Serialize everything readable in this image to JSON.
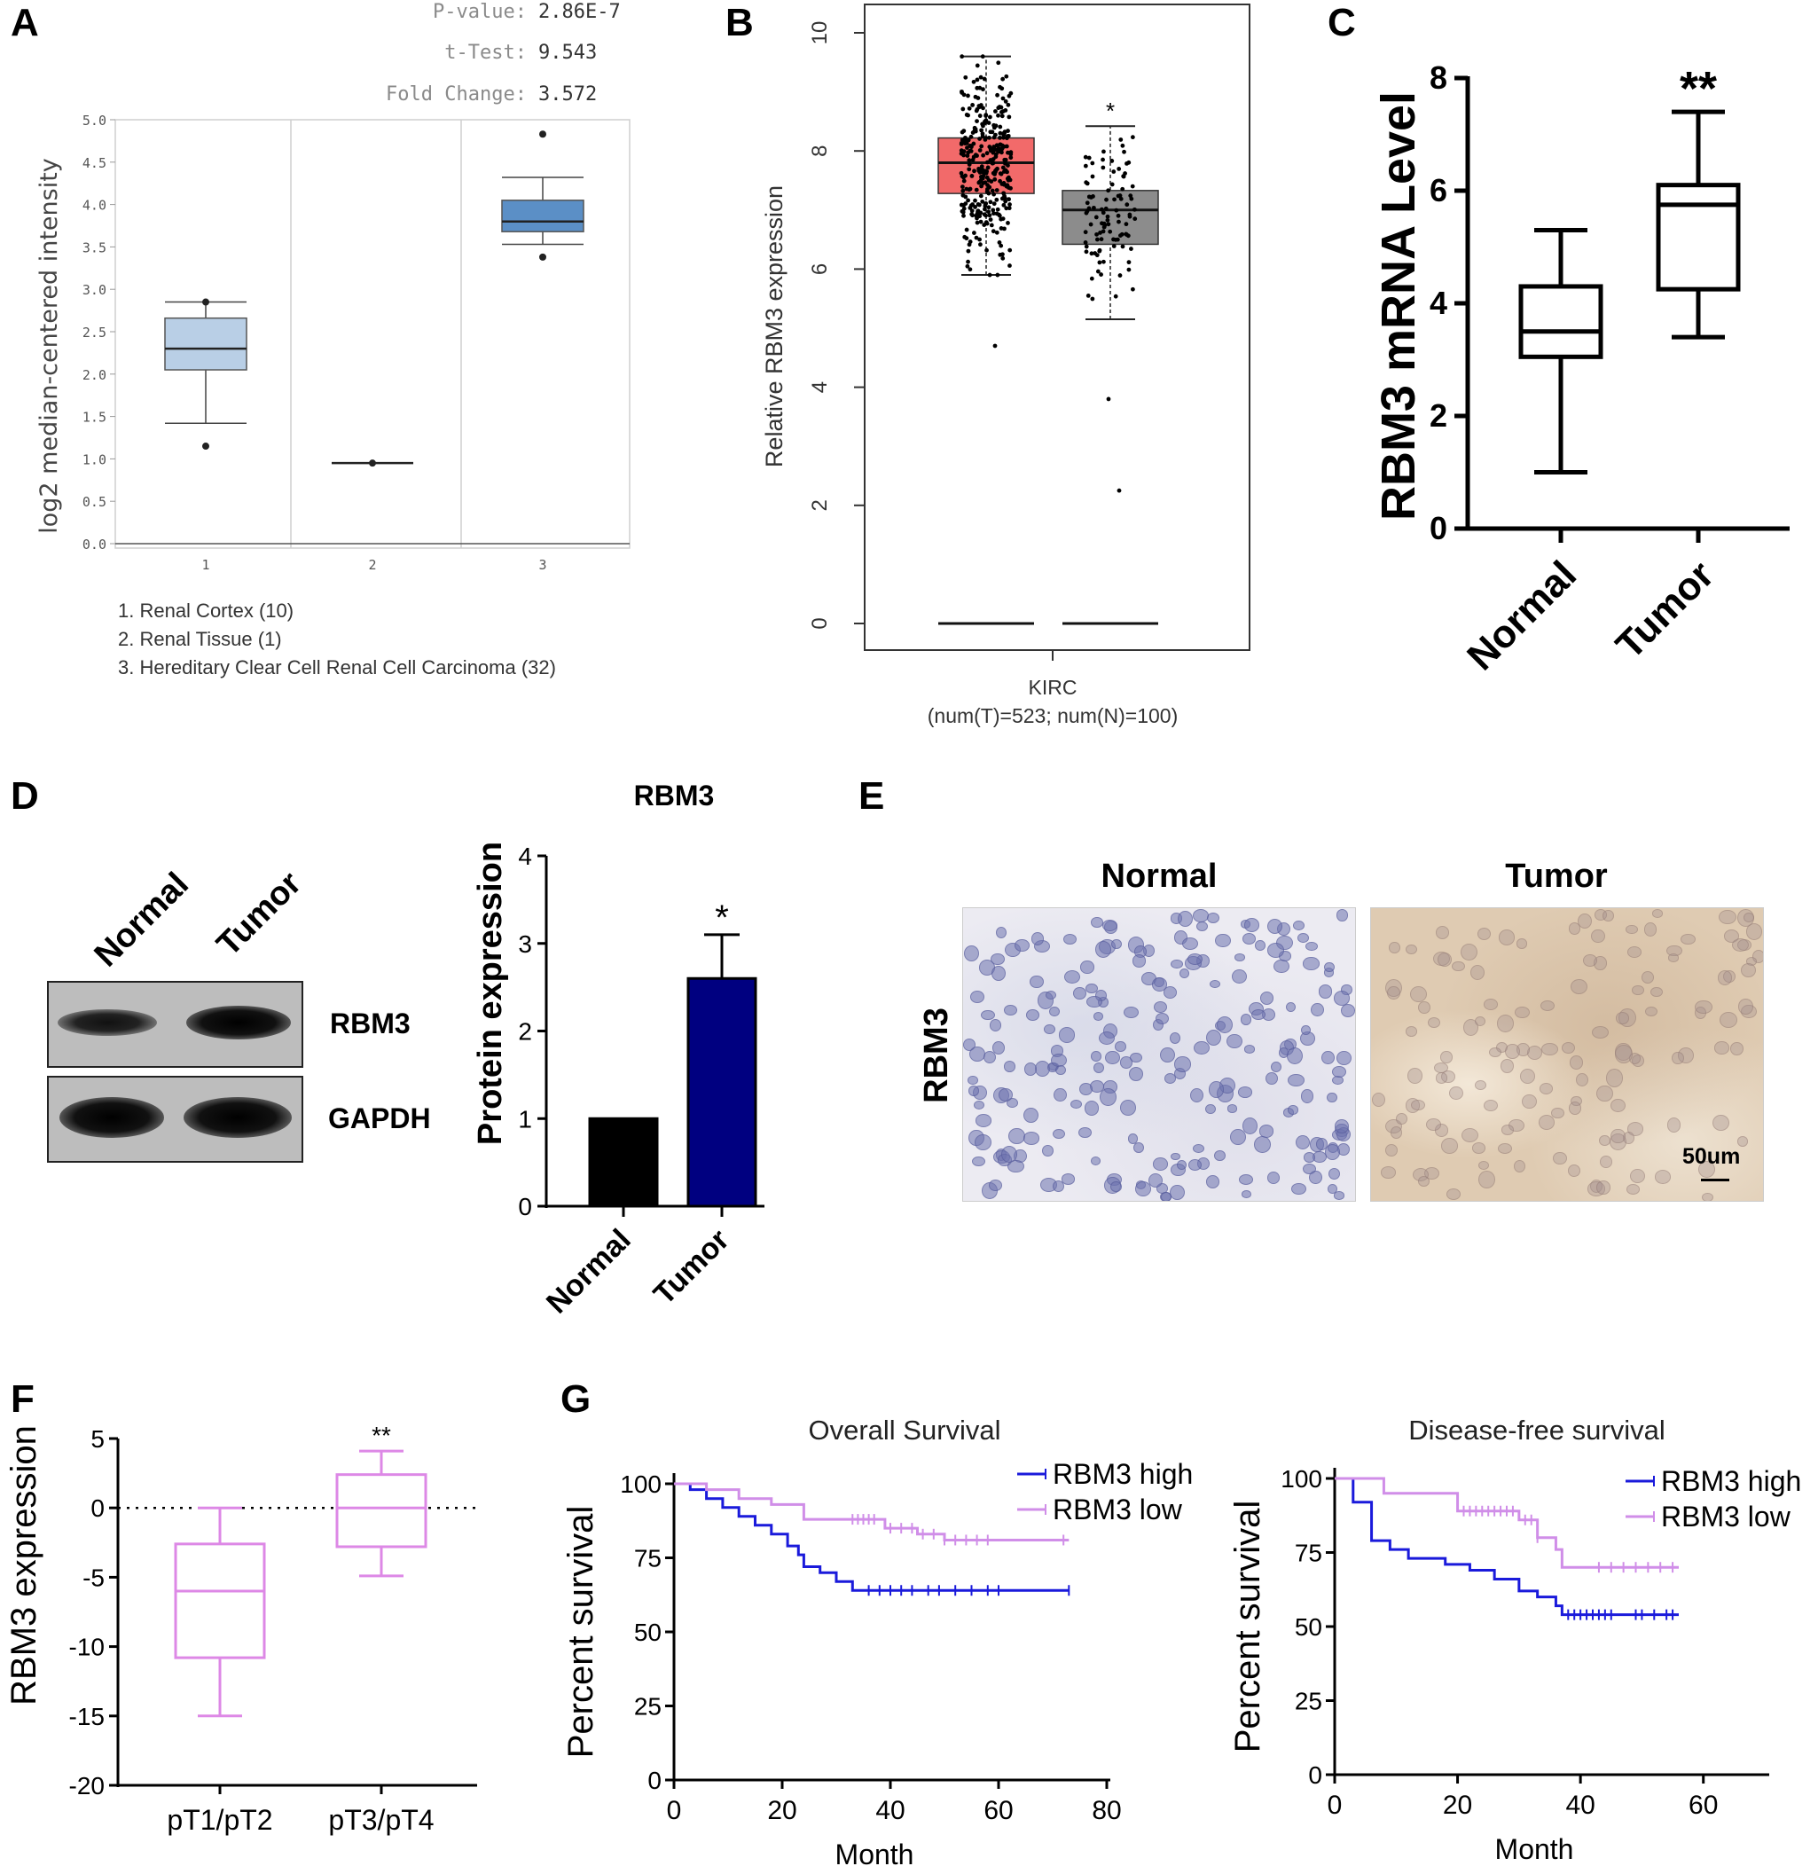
{
  "panels": {
    "A": {
      "letter": "A",
      "stats": [
        {
          "label": "P-value:",
          "value": "2.86E-7"
        },
        {
          "label": "t-Test:",
          "value": "9.543"
        },
        {
          "label": "Fold Change:",
          "value": "3.572"
        }
      ],
      "legend_items": [
        "1. Renal Cortex (10)",
        "2. Renal Tissue (1)",
        "3. Hereditary Clear Cell Renal Cell Carcinoma (32)"
      ]
    },
    "B": {
      "letter": "B",
      "caption_line1": "KIRC",
      "caption_line2": "(num(T)=523; num(N)=100)"
    },
    "C": {
      "letter": "C"
    },
    "D": {
      "letter": "D",
      "blot_columns": [
        "Normal",
        "Tumor"
      ],
      "blot_rows": [
        "RBM3",
        "GAPDH"
      ]
    },
    "E": {
      "letter": "E",
      "columns": [
        "Normal",
        "Tumor"
      ],
      "row_label": "RBM3",
      "scale_bar": "50um"
    },
    "F": {
      "letter": "F"
    },
    "G": {
      "letter": "G"
    }
  },
  "chart_data": [
    {
      "panel": "A",
      "type": "box",
      "ylabel": "log2 median-centered intensity",
      "ylim": [
        0,
        5.0
      ],
      "yticks": [
        "0.0",
        "0.5",
        "1.0",
        "1.5",
        "2.0",
        "2.5",
        "3.0",
        "3.5",
        "4.0",
        "4.5",
        "5.0"
      ],
      "categories": [
        "1",
        "2",
        "3"
      ],
      "boxes": [
        {
          "category": "1",
          "whisker_low": 1.42,
          "q1": 2.05,
          "median": 2.3,
          "q3": 2.66,
          "whisker_high": 2.85,
          "outliers": [
            1.15,
            2.85
          ]
        },
        {
          "category": "2",
          "whisker_low": 0.95,
          "q1": 0.95,
          "median": 0.95,
          "q3": 0.95,
          "whisker_high": 0.95,
          "outliers": [
            0.95
          ]
        },
        {
          "category": "3",
          "whisker_low": 3.53,
          "q1": 3.68,
          "median": 3.8,
          "q3": 4.05,
          "whisker_high": 4.32,
          "outliers": [
            3.38,
            4.83
          ]
        }
      ],
      "colors": [
        "#b9cfe6",
        "#b9cfe6",
        "#5b8fc6"
      ]
    },
    {
      "panel": "B",
      "type": "box",
      "ylabel": "Relative RBM3 expression",
      "ylim": [
        0,
        10
      ],
      "yticks": [
        "0",
        "2",
        "4",
        "6",
        "8",
        "10"
      ],
      "boxes": [
        {
          "group": "T",
          "n": 523,
          "whisker_low": 5.9,
          "q1": 7.28,
          "median": 7.8,
          "q3": 8.22,
          "whisker_high": 9.6,
          "min_point": 4.7,
          "color": "#f26a6a"
        },
        {
          "group": "N",
          "n": 100,
          "whisker_low": 5.15,
          "q1": 6.42,
          "median": 7.0,
          "q3": 7.33,
          "whisker_high": 8.42,
          "min_point": 2.25,
          "color": "#8c8c8c"
        }
      ],
      "annotation": "*"
    },
    {
      "panel": "C",
      "type": "box",
      "ylabel": "RBM3 mRNA Level",
      "ylim": [
        0,
        8
      ],
      "yticks": [
        "0",
        "2",
        "4",
        "6",
        "8"
      ],
      "categories": [
        "Normal",
        "Tumor"
      ],
      "boxes": [
        {
          "category": "Normal",
          "whisker_low": 1.0,
          "q1": 3.05,
          "median": 3.5,
          "q3": 4.3,
          "whisker_high": 5.3
        },
        {
          "category": "Tumor",
          "whisker_low": 3.4,
          "q1": 4.25,
          "median": 5.75,
          "q3": 6.1,
          "whisker_high": 7.4
        }
      ],
      "annotation": "**"
    },
    {
      "panel": "D",
      "type": "bar",
      "title": "RBM3",
      "ylabel": "Protein expression",
      "ylim": [
        0,
        4
      ],
      "yticks": [
        "0",
        "1",
        "2",
        "3",
        "4"
      ],
      "categories": [
        "Normal",
        "Tumor"
      ],
      "values": [
        1.0,
        2.6
      ],
      "errors": [
        0,
        0.5
      ],
      "colors": [
        "#000000",
        "#000080"
      ],
      "annotation": "*"
    },
    {
      "panel": "F",
      "type": "box",
      "ylabel": "RBM3 expression",
      "ylim": [
        -20,
        5
      ],
      "yticks": [
        "-20",
        "-15",
        "-10",
        "-5",
        "0",
        "5"
      ],
      "categories": [
        "pT1/pT2",
        "pT3/pT4"
      ],
      "boxes": [
        {
          "category": "pT1/pT2",
          "whisker_low": -15,
          "q1": -10.8,
          "median": -6,
          "q3": -2.6,
          "whisker_high": 0
        },
        {
          "category": "pT3/pT4",
          "whisker_low": -4.9,
          "q1": -2.8,
          "median": 0,
          "q3": 2.4,
          "whisker_high": 4.1
        }
      ],
      "color": "#dd88e6",
      "annotation": "**"
    },
    {
      "panel": "G1",
      "type": "line",
      "title": "Overall Survival",
      "xlabel": "Month",
      "ylabel": "Percent survival",
      "xlim": [
        0,
        80
      ],
      "ylim": [
        0,
        100
      ],
      "xticks": [
        "0",
        "20",
        "40",
        "60",
        "80"
      ],
      "yticks": [
        "0",
        "25",
        "50",
        "75",
        "100"
      ],
      "series": [
        {
          "name": "RBM3 high",
          "color": "#1a1adb",
          "x": [
            0,
            3,
            6,
            9,
            12,
            15,
            18,
            21,
            23,
            24,
            27,
            30,
            33,
            73
          ],
          "y": [
            100,
            98,
            95,
            92,
            89,
            86,
            83,
            79,
            76,
            72,
            70,
            67,
            64,
            64
          ],
          "censor_x": [
            36,
            38,
            40,
            42,
            44,
            47,
            49,
            52,
            55,
            58,
            60,
            73
          ]
        },
        {
          "name": "RBM3 low",
          "color": "#d08ee8",
          "x": [
            0,
            6,
            12,
            18,
            24,
            34,
            39,
            45,
            50,
            73
          ],
          "y": [
            100,
            98,
            95,
            93,
            88,
            88,
            85,
            83,
            81,
            81
          ],
          "censor_x": [
            33,
            34,
            35,
            36,
            37,
            40,
            42,
            44,
            46,
            48,
            50,
            52,
            54,
            56,
            58,
            72
          ]
        }
      ]
    },
    {
      "panel": "G2",
      "type": "line",
      "title": "Disease-free survival",
      "xlabel": "Month",
      "ylabel": "Percent survival",
      "xlim": [
        0,
        70
      ],
      "ylim": [
        0,
        100
      ],
      "xticks": [
        "0",
        "20",
        "40",
        "60"
      ],
      "yticks": [
        "0",
        "25",
        "50",
        "75",
        "100"
      ],
      "series": [
        {
          "name": "RBM3 high",
          "color": "#1a1adb",
          "x": [
            0,
            3,
            6,
            9,
            12,
            18,
            22,
            26,
            30,
            33,
            36,
            37,
            56
          ],
          "y": [
            100,
            92,
            79,
            76,
            73,
            71,
            69,
            66,
            62,
            60,
            57,
            54,
            54
          ],
          "censor_x": [
            38,
            39,
            40,
            41,
            42,
            43,
            44,
            45,
            49,
            50,
            52,
            54,
            55
          ]
        },
        {
          "name": "RBM3 low",
          "color": "#d08ee8",
          "x": [
            0,
            8,
            20,
            30,
            33,
            36,
            37,
            56
          ],
          "y": [
            100,
            95,
            89,
            86,
            80,
            76,
            70,
            70
          ],
          "censor_x": [
            21,
            22,
            23,
            24,
            25,
            26,
            27,
            28,
            29,
            31,
            32,
            33,
            43,
            45,
            47,
            49,
            51,
            53,
            55
          ]
        }
      ]
    }
  ]
}
